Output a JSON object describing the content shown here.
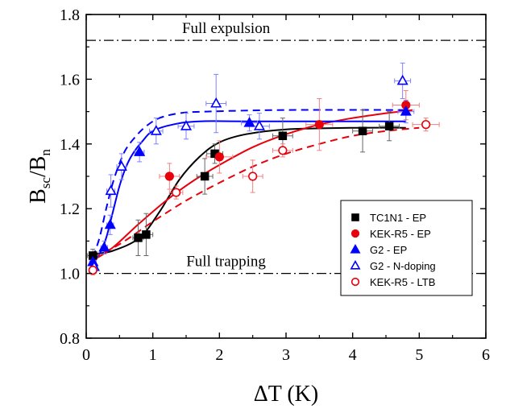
{
  "chart_data": {
    "type": "scatter",
    "xlabel": "ΔT (K)",
    "ylabel": {
      "main": "B",
      "sub1": "sc",
      "slash": "/B",
      "sub2": "n"
    },
    "xlim": [
      0,
      6
    ],
    "ylim": [
      0.8,
      1.8
    ],
    "xticks": [
      "0",
      "1",
      "2",
      "3",
      "4",
      "5",
      "6"
    ],
    "yticks": [
      "0.8",
      "1.0",
      "1.2",
      "1.4",
      "1.6",
      "1.8"
    ],
    "grid": false,
    "legend_position": "lower-right",
    "reference_lines": [
      {
        "label": "Full expulsion",
        "y": 1.72
      },
      {
        "label": "Full trapping",
        "y": 1.0
      }
    ],
    "series": [
      {
        "name": "TC1N1 - EP",
        "color": "#000000",
        "marker": "filled-square",
        "points": [
          {
            "x": 0.1,
            "y": 1.055,
            "xerr": 0.08,
            "yerr": 0.02
          },
          {
            "x": 0.78,
            "y": 1.11,
            "xerr": 0.08,
            "yerr": 0.055
          },
          {
            "x": 0.9,
            "y": 1.12,
            "xerr": 0.1,
            "yerr": 0.065
          },
          {
            "x": 1.78,
            "y": 1.3,
            "xerr": 0.12,
            "yerr": 0.055
          },
          {
            "x": 1.93,
            "y": 1.37,
            "xerr": 0.12,
            "yerr": 0.03
          },
          {
            "x": 2.95,
            "y": 1.425,
            "xerr": 0.15,
            "yerr": 0.055
          },
          {
            "x": 4.15,
            "y": 1.44,
            "xerr": 0.15,
            "yerr": 0.065
          },
          {
            "x": 4.55,
            "y": 1.455,
            "xerr": 0.15,
            "yerr": 0.045
          }
        ],
        "fit": {
          "style": "solid",
          "curve": [
            [
              0.1,
              1.06
            ],
            [
              0.4,
              1.07
            ],
            [
              0.8,
              1.11
            ],
            [
              1.1,
              1.19
            ],
            [
              1.4,
              1.29
            ],
            [
              1.7,
              1.36
            ],
            [
              2.0,
              1.405
            ],
            [
              2.4,
              1.43
            ],
            [
              3.0,
              1.445
            ],
            [
              4.0,
              1.45
            ],
            [
              4.8,
              1.45
            ]
          ]
        }
      },
      {
        "name": "KEK-R5 - EP",
        "color": "#e8000b",
        "marker": "filled-circle",
        "points": [
          {
            "x": 1.25,
            "y": 1.3,
            "xerr": 0.15,
            "yerr": 0.04
          },
          {
            "x": 2.0,
            "y": 1.36,
            "xerr": 0.2,
            "yerr": 0.05
          },
          {
            "x": 3.5,
            "y": 1.46,
            "xerr": 0.2,
            "yerr": 0.08
          },
          {
            "x": 4.8,
            "y": 1.52,
            "xerr": 0.2,
            "yerr": 0.045
          }
        ],
        "fit": {
          "style": "solid",
          "curve": [
            [
              0.1,
              1.04
            ],
            [
              0.4,
              1.08
            ],
            [
              0.8,
              1.155
            ],
            [
              1.2,
              1.225
            ],
            [
              1.6,
              1.285
            ],
            [
              2.0,
              1.335
            ],
            [
              2.5,
              1.39
            ],
            [
              3.0,
              1.43
            ],
            [
              3.5,
              1.46
            ],
            [
              4.0,
              1.48
            ],
            [
              4.5,
              1.495
            ],
            [
              4.9,
              1.505
            ]
          ]
        }
      },
      {
        "name": "G2 - EP",
        "color": "#0000ff",
        "marker": "filled-triangle",
        "points": [
          {
            "x": 0.1,
            "y": 1.035,
            "xerr": 0.05,
            "yerr": 0.02
          },
          {
            "x": 0.27,
            "y": 1.08,
            "xerr": 0.05,
            "yerr": 0.02
          },
          {
            "x": 0.36,
            "y": 1.15,
            "xerr": 0.05,
            "yerr": 0.03
          },
          {
            "x": 0.8,
            "y": 1.375,
            "xerr": 0.07,
            "yerr": 0.03
          },
          {
            "x": 2.45,
            "y": 1.465,
            "xerr": 0.12,
            "yerr": 0.025
          },
          {
            "x": 4.8,
            "y": 1.5,
            "xerr": 0.12,
            "yerr": 0.035
          }
        ],
        "fit": {
          "style": "solid",
          "curve": [
            [
              0.1,
              1.04
            ],
            [
              0.2,
              1.06
            ],
            [
              0.3,
              1.11
            ],
            [
              0.4,
              1.19
            ],
            [
              0.5,
              1.27
            ],
            [
              0.6,
              1.33
            ],
            [
              0.7,
              1.37
            ],
            [
              0.85,
              1.41
            ],
            [
              1.0,
              1.44
            ],
            [
              1.3,
              1.46
            ],
            [
              1.7,
              1.47
            ],
            [
              2.5,
              1.47
            ],
            [
              4.8,
              1.47
            ]
          ]
        }
      },
      {
        "name": "G2 - N-doping",
        "color": "#0000ff",
        "marker": "open-triangle",
        "points": [
          {
            "x": 0.12,
            "y": 1.02,
            "xerr": 0.05,
            "yerr": 0.02
          },
          {
            "x": 0.37,
            "y": 1.255,
            "xerr": 0.06,
            "yerr": 0.05
          },
          {
            "x": 0.53,
            "y": 1.33,
            "xerr": 0.07,
            "yerr": 0.04
          },
          {
            "x": 1.05,
            "y": 1.44,
            "xerr": 0.1,
            "yerr": 0.04
          },
          {
            "x": 1.5,
            "y": 1.455,
            "xerr": 0.12,
            "yerr": 0.04
          },
          {
            "x": 1.95,
            "y": 1.525,
            "xerr": 0.15,
            "yerr": 0.09
          },
          {
            "x": 2.6,
            "y": 1.455,
            "xerr": 0.15,
            "yerr": 0.04
          },
          {
            "x": 4.75,
            "y": 1.595,
            "xerr": 0.12,
            "yerr": 0.055
          }
        ],
        "fit": {
          "style": "dashed",
          "curve": [
            [
              0.1,
              1.05
            ],
            [
              0.2,
              1.11
            ],
            [
              0.3,
              1.2
            ],
            [
              0.4,
              1.28
            ],
            [
              0.5,
              1.34
            ],
            [
              0.6,
              1.385
            ],
            [
              0.75,
              1.425
            ],
            [
              0.9,
              1.455
            ],
            [
              1.1,
              1.48
            ],
            [
              1.4,
              1.495
            ],
            [
              1.8,
              1.5
            ],
            [
              3.0,
              1.505
            ],
            [
              4.8,
              1.505
            ]
          ]
        }
      },
      {
        "name": "KEK-R5 - LTB",
        "color": "#e8000b",
        "marker": "open-circle",
        "points": [
          {
            "x": 0.1,
            "y": 1.01,
            "xerr": 0.05,
            "yerr": 0.015
          },
          {
            "x": 1.35,
            "y": 1.25,
            "xerr": 0.1,
            "yerr": 0.02
          },
          {
            "x": 2.5,
            "y": 1.3,
            "xerr": 0.15,
            "yerr": 0.05
          },
          {
            "x": 2.95,
            "y": 1.38,
            "xerr": 0.15,
            "yerr": 0.02
          },
          {
            "x": 5.1,
            "y": 1.46,
            "xerr": 0.2,
            "yerr": 0.02
          }
        ],
        "fit": {
          "style": "dashed",
          "curve": [
            [
              0.1,
              1.05
            ],
            [
              0.5,
              1.09
            ],
            [
              1.0,
              1.16
            ],
            [
              1.5,
              1.225
            ],
            [
              2.0,
              1.28
            ],
            [
              2.5,
              1.33
            ],
            [
              3.0,
              1.37
            ],
            [
              3.5,
              1.4
            ],
            [
              4.0,
              1.425
            ],
            [
              4.5,
              1.44
            ],
            [
              5.0,
              1.45
            ]
          ]
        }
      }
    ]
  }
}
